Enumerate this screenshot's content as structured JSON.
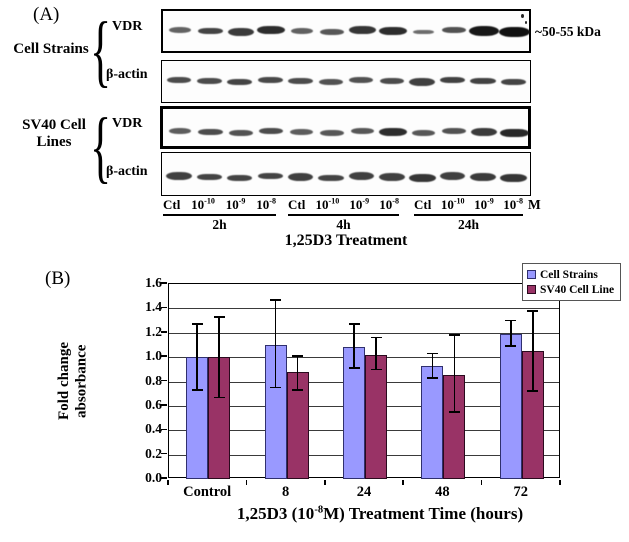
{
  "panel_a": {
    "label": "(A)",
    "group1_name": "Cell Strains",
    "group2_name": "SV40 Cell\nLines",
    "antibody_vdr": "VDR",
    "antibody_actin": "β-actin",
    "marker_label": "~50-55 kDa",
    "unit_label": "M",
    "treatment_label": "1,25D3 Treatment",
    "lane_groups": [
      {
        "time": "2h",
        "lanes": [
          {
            "base": "Ctl",
            "exp": ""
          },
          {
            "base": "10",
            "exp": "-10"
          },
          {
            "base": "10",
            "exp": "-9"
          },
          {
            "base": "10",
            "exp": "-8"
          }
        ]
      },
      {
        "time": "4h",
        "lanes": [
          {
            "base": "Ctl",
            "exp": ""
          },
          {
            "base": "10",
            "exp": "-10"
          },
          {
            "base": "10",
            "exp": "-9"
          },
          {
            "base": "10",
            "exp": "-8"
          }
        ]
      },
      {
        "time": "24h",
        "lanes": [
          {
            "base": "Ctl",
            "exp": ""
          },
          {
            "base": "10",
            "exp": "-10"
          },
          {
            "base": "10",
            "exp": "-9"
          },
          {
            "base": "10",
            "exp": "-8"
          }
        ]
      }
    ],
    "blots": [
      {
        "name": "cell-strains-vdr",
        "band_intensities": [
          0.3,
          0.55,
          0.65,
          0.75,
          0.32,
          0.4,
          0.68,
          0.75,
          0.22,
          0.45,
          0.95,
          1.0
        ]
      },
      {
        "name": "cell-strains-beta-actin",
        "band_intensities": [
          0.5,
          0.5,
          0.55,
          0.52,
          0.5,
          0.45,
          0.45,
          0.5,
          0.6,
          0.58,
          0.58,
          0.55
        ]
      },
      {
        "name": "sv40-vdr",
        "band_intensities": [
          0.35,
          0.5,
          0.45,
          0.5,
          0.35,
          0.4,
          0.4,
          0.75,
          0.4,
          0.45,
          0.65,
          0.8
        ]
      },
      {
        "name": "sv40-beta-actin",
        "band_intensities": [
          0.6,
          0.55,
          0.55,
          0.55,
          0.6,
          0.55,
          0.6,
          0.6,
          0.68,
          0.6,
          0.65,
          0.68
        ]
      }
    ]
  },
  "panel_b": {
    "label": "(B)"
  },
  "chart_data": {
    "type": "bar",
    "categories": [
      "Control",
      "8",
      "24",
      "48",
      "72"
    ],
    "series": [
      {
        "name": "Cell Strains",
        "color": "#9999ff",
        "border_color": "#30306e",
        "values": [
          1.0,
          1.1,
          1.08,
          0.93,
          1.19
        ],
        "error_low": [
          0.73,
          0.75,
          0.91,
          0.83,
          1.09
        ],
        "error_high": [
          1.27,
          1.47,
          1.27,
          1.03,
          1.3
        ]
      },
      {
        "name": "SV40 Cell Line",
        "color": "#993366",
        "border_color": "#2a0a1e",
        "values": [
          1.0,
          0.88,
          1.02,
          0.85,
          1.05
        ],
        "error_low": [
          0.67,
          0.73,
          0.9,
          0.55,
          0.72
        ],
        "error_high": [
          1.33,
          1.01,
          1.16,
          1.18,
          1.38
        ]
      }
    ],
    "ylabel": "Fold change\nabsorbance",
    "xlabel_prefix": "1,25D3 (10",
    "xlabel_exponent": "-8",
    "xlabel_suffix": "M) Treatment Time (hours)",
    "ylim": [
      0.0,
      1.6
    ],
    "yticks": [
      "0.0",
      "0.2",
      "0.4",
      "0.6",
      "0.8",
      "1.0",
      "1.2",
      "1.4",
      "1.6"
    ],
    "grid": true,
    "legend_position": "top-right",
    "error_bars": true
  }
}
